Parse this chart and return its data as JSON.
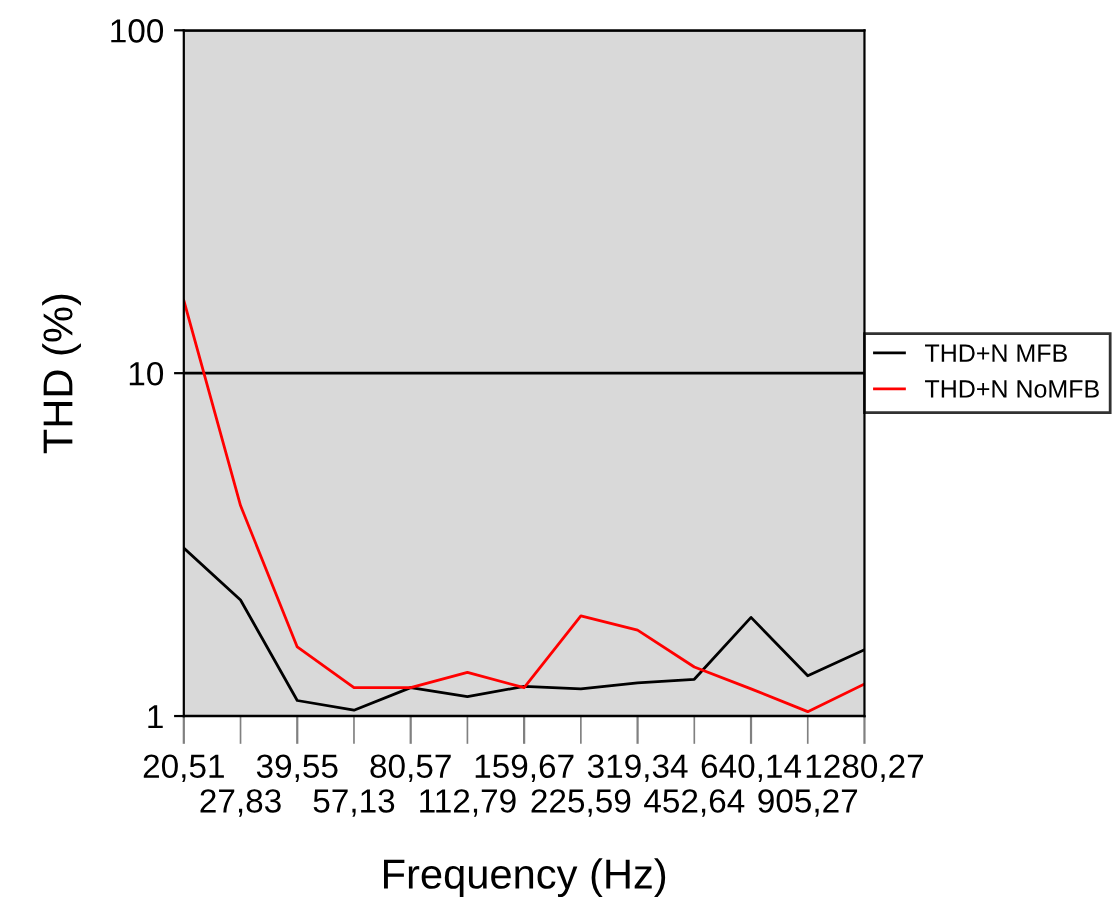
{
  "chart_data": {
    "type": "line",
    "xlabel": "Frequency (Hz)",
    "ylabel": "THD (%)",
    "categories": [
      "20,51",
      "27,83",
      "39,55",
      "57,13",
      "80,57",
      "112,79",
      "159,67",
      "225,59",
      "319,34",
      "452,64",
      "640,14",
      "905,27",
      "1280,27"
    ],
    "series": [
      {
        "name": "THD+N MFB",
        "color": "#000000",
        "values": [
          3.09,
          2.18,
          1.11,
          1.04,
          1.21,
          1.14,
          1.22,
          1.2,
          1.25,
          1.28,
          1.94,
          1.31,
          1.56
        ]
      },
      {
        "name": "THD+N NoMFB",
        "color": "#ff0000",
        "values": [
          16.3,
          4.11,
          1.59,
          1.21,
          1.21,
          1.34,
          1.21,
          1.96,
          1.78,
          1.39,
          1.2,
          1.03,
          1.24
        ]
      }
    ],
    "log": "y",
    "ylim": [
      1,
      100
    ],
    "yticks": [
      1,
      10,
      100
    ],
    "grid": "y",
    "legend": "right",
    "marker": "none",
    "line_style": "solid"
  }
}
